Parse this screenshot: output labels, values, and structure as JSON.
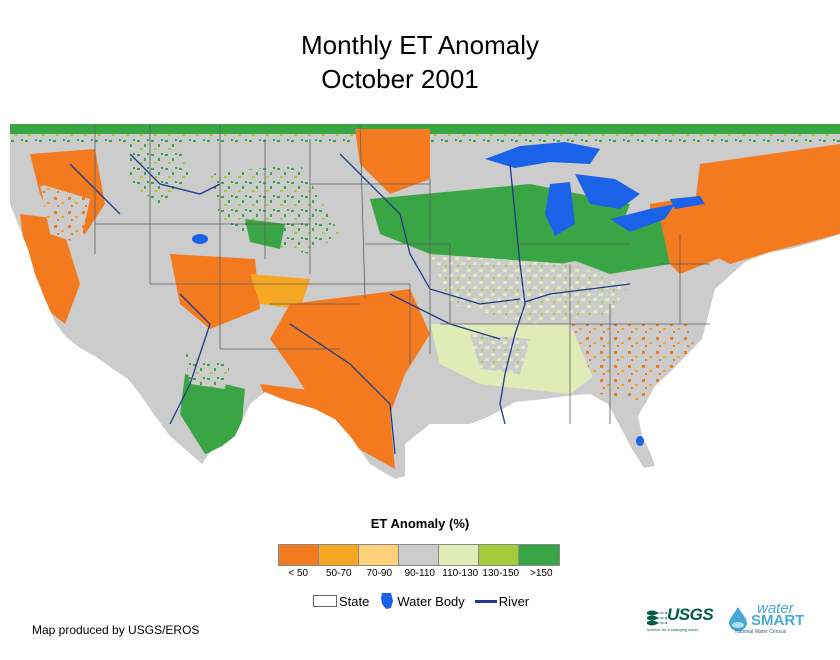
{
  "title": {
    "line1": "Monthly ET Anomaly",
    "line2": "October 2001"
  },
  "legend": {
    "title": "ET Anomaly (%)",
    "classes": [
      {
        "label": "< 50",
        "color": "#f47a20"
      },
      {
        "label": "50-70",
        "color": "#f5a623"
      },
      {
        "label": "70-90",
        "color": "#fdd07a"
      },
      {
        "label": "90-110",
        "color": "#cccccc"
      },
      {
        "label": "110-130",
        "color": "#e1ebb8"
      },
      {
        "label": "130-150",
        "color": "#a4cc3c"
      },
      {
        "label": ">150",
        "color": "#3aa544"
      }
    ]
  },
  "features": {
    "state": "State",
    "water_body": "Water Body",
    "river": "River"
  },
  "colors": {
    "water": "#1a62e8",
    "river": "#1f3a8c",
    "state_line": "#5f5f5f"
  },
  "credit": "Map produced by USGS/EROS",
  "logos": {
    "usgs": "USGS",
    "usgs_tagline": "science for a changing world",
    "water": "water",
    "smart": "SMART",
    "watersmart_tagline": "National Water Census"
  }
}
